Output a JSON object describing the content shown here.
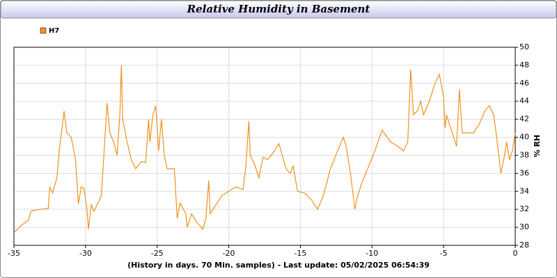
{
  "chart_data": {
    "type": "line",
    "title": "Relative Humidity in Basement",
    "x_label": "(History in days. 70 Min. samples) - Last update: 05/02/2025 06:54:39",
    "y_label": "% RH",
    "xlim": [
      -35,
      0
    ],
    "xticks": [
      -35,
      -30,
      -25,
      -20,
      -15,
      -10,
      -5,
      0
    ],
    "ylim": [
      28,
      50
    ],
    "yticks": [
      28,
      30,
      32,
      34,
      36,
      38,
      40,
      42,
      44,
      46,
      48,
      50
    ],
    "grid": true,
    "legend": "top-left",
    "x": [
      -35,
      -34.5,
      -34,
      -33.8,
      -33.2,
      -32.6,
      -32.5,
      -32.3,
      -32.0,
      -31.8,
      -31.6,
      -31.5,
      -31.3,
      -31.0,
      -30.7,
      -30.5,
      -30.3,
      -30.1,
      -29.9,
      -29.8,
      -29.6,
      -29.4,
      -29.2,
      -28.9,
      -28.7,
      -28.5,
      -28.3,
      -28.0,
      -27.8,
      -27.6,
      -27.5,
      -27.4,
      -27.1,
      -26.8,
      -26.5,
      -26.1,
      -25.8,
      -25.6,
      -25.5,
      -25.3,
      -25.1,
      -24.9,
      -24.7,
      -24.5,
      -24.3,
      -23.8,
      -23.6,
      -23.4,
      -23.0,
      -22.9,
      -22.6,
      -22.2,
      -21.8,
      -21.6,
      -21.4,
      -21.3,
      -20.9,
      -20.5,
      -20.0,
      -19.5,
      -19.0,
      -18.8,
      -18.6,
      -18.5,
      -18.2,
      -17.9,
      -17.6,
      -17.3,
      -16.8,
      -16.5,
      -16.0,
      -15.7,
      -15.5,
      -15.2,
      -14.7,
      -14.2,
      -13.8,
      -13.4,
      -12.9,
      -12.4,
      -12.0,
      -11.8,
      -11.5,
      -11.2,
      -11.0,
      -10.7,
      -10.3,
      -9.8,
      -9.3,
      -8.7,
      -8.2,
      -7.8,
      -7.5,
      -7.3,
      -7.1,
      -6.8,
      -6.6,
      -6.4,
      -6.0,
      -5.6,
      -5.3,
      -5.0,
      -4.9,
      -4.8,
      -4.5,
      -4.1,
      -3.9,
      -3.7,
      -3.3,
      -2.9,
      -2.5,
      -2.1,
      -1.8,
      -1.5,
      -1.3,
      -1.0,
      -0.8,
      -0.6,
      -0.4,
      -0.2,
      0
    ],
    "series": [
      {
        "name": "H7",
        "color": "#f0901e",
        "values": [
          29.4,
          30.2,
          30.8,
          31.8,
          32.0,
          32.1,
          34.5,
          33.8,
          35.5,
          39.0,
          41.5,
          42.9,
          40.5,
          40.0,
          37.5,
          32.6,
          34.5,
          34.3,
          32.0,
          29.8,
          32.5,
          31.8,
          32.5,
          33.5,
          38.5,
          43.8,
          40.5,
          39.3,
          38.0,
          42.5,
          48.0,
          42.0,
          39.5,
          37.5,
          36.5,
          37.3,
          37.2,
          42.0,
          39.5,
          42.5,
          43.5,
          38.5,
          42.0,
          38.0,
          36.5,
          36.5,
          31.0,
          32.7,
          31.5,
          30.0,
          31.5,
          30.5,
          29.8,
          31.0,
          35.2,
          31.5,
          32.5,
          33.5,
          34.0,
          34.5,
          34.2,
          37.0,
          41.8,
          38.0,
          37.0,
          35.5,
          37.8,
          37.5,
          38.5,
          39.3,
          36.5,
          36.0,
          36.8,
          34.0,
          33.8,
          33.0,
          32.0,
          33.5,
          36.5,
          38.5,
          40.0,
          39.0,
          36.0,
          32.0,
          33.5,
          35.0,
          36.5,
          38.5,
          40.8,
          39.5,
          39.0,
          38.5,
          39.5,
          47.5,
          42.5,
          43.0,
          44.0,
          42.5,
          44.0,
          46.0,
          47.0,
          44.5,
          41.0,
          42.5,
          41.0,
          39.0,
          45.3,
          40.5,
          40.5,
          40.5,
          41.5,
          43.0,
          43.5,
          42.5,
          40.0,
          36.0,
          37.5,
          39.5,
          37.5,
          38.5,
          40.5
        ]
      }
    ]
  }
}
